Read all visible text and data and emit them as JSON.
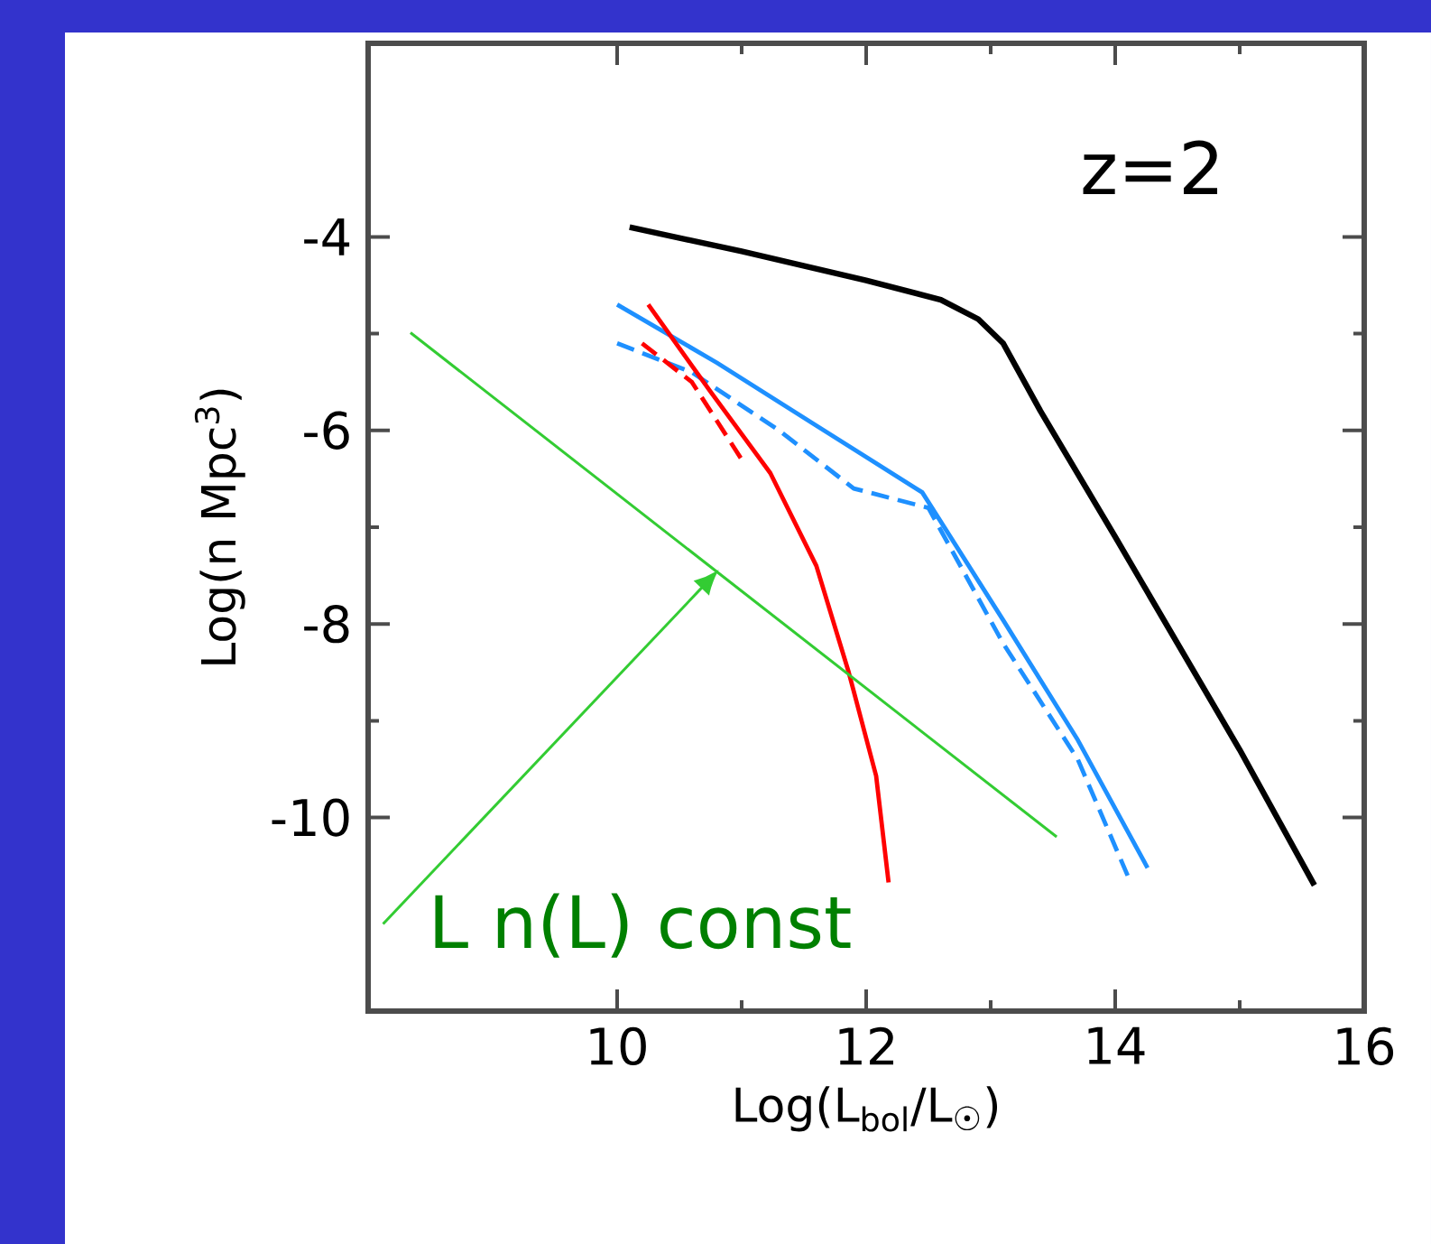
{
  "chart_data": {
    "type": "line",
    "xlabel": "Log(L$_{bol}$/L$_{☉}$)",
    "ylabel": "Log(n Mpc$^{3}$)",
    "xlim": [
      8,
      16
    ],
    "ylim": [
      -12,
      -2
    ],
    "xticks": [
      10,
      12,
      14,
      16
    ],
    "yticks": [
      -10,
      -8,
      -6,
      -4
    ],
    "grid": false,
    "marker": "none",
    "annotations": [
      "z=2",
      "L n(L) const"
    ],
    "series": [
      {
        "color": "#000000",
        "line_style": "solid",
        "x": [
          10.1,
          11,
          12,
          12.6,
          12.9,
          13.1,
          13.4,
          14,
          15,
          15.6
        ],
        "values": [
          -3.9,
          -4.15,
          -4.45,
          -4.65,
          -4.85,
          -5.1,
          -5.8,
          -7.1,
          -9.3,
          -10.7
        ]
      },
      {
        "color": "#1e90ff",
        "line_style": "solid",
        "x": [
          10,
          10.8,
          11.6,
          12.45,
          13.1,
          13.7,
          14.26
        ],
        "values": [
          -4.7,
          -5.3,
          -5.95,
          -6.64,
          -7.96,
          -9.2,
          -10.52
        ]
      },
      {
        "color": "#1e90ff",
        "line_style": "dashed",
        "x": [
          10,
          10.6,
          11.3,
          11.9,
          12.5,
          13.1,
          13.7,
          14.1
        ],
        "values": [
          -5.1,
          -5.4,
          -6.0,
          -6.6,
          -6.8,
          -8.2,
          -9.4,
          -10.6
        ]
      },
      {
        "color": "#ff0000",
        "line_style": "solid",
        "x": [
          10.25,
          10.75,
          11.23,
          11.6,
          11.86,
          12.08,
          12.18
        ],
        "values": [
          -4.7,
          -5.6,
          -6.44,
          -7.4,
          -8.5,
          -9.57,
          -10.67
        ]
      },
      {
        "color": "#ff0000",
        "line_style": "dashed",
        "x": [
          10.2,
          10.6,
          10.8,
          11.0
        ],
        "values": [
          -5.1,
          -5.5,
          -5.9,
          -6.3
        ]
      },
      {
        "color": "#33cc33",
        "line_style": "solid",
        "x": [
          8.34,
          13.53
        ],
        "values": [
          -4.99,
          -10.2
        ]
      }
    ]
  }
}
